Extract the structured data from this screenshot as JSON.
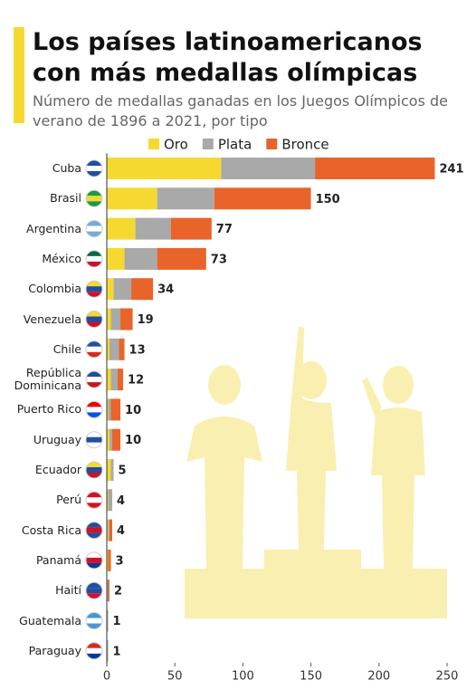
{
  "chart_data": {
    "type": "stacked-bar-horizontal",
    "title": "Los países latinoamericanos con más medallas olímpicas",
    "subtitle": "Número de medallas ganadas en los Juegos Olímpicos de verano de 1896 a 2021, por tipo",
    "categories": [
      "Cuba",
      "Brasil",
      "Argentina",
      "México",
      "Colombia",
      "Venezuela",
      "Chile",
      "República Dominicana",
      "Puerto Rico",
      "Uruguay",
      "Ecuador",
      "Perú",
      "Costa Rica",
      "Panamá",
      "Haití",
      "Guatemala",
      "Paraguay"
    ],
    "series": [
      {
        "name": "Oro",
        "color": "#f5d930",
        "values": [
          84,
          37,
          21,
          13,
          5,
          3,
          2,
          3,
          1,
          2,
          3,
          1,
          1,
          1,
          0,
          0,
          0
        ]
      },
      {
        "name": "Plata",
        "color": "#a9a9a9",
        "values": [
          69,
          42,
          26,
          24,
          13,
          7,
          7,
          5,
          2,
          2,
          2,
          3,
          1,
          0,
          1,
          1,
          1
        ]
      },
      {
        "name": "Bronce",
        "color": "#e8642a",
        "values": [
          88,
          71,
          30,
          36,
          16,
          9,
          4,
          4,
          7,
          6,
          0,
          0,
          2,
          2,
          1,
          0,
          0
        ]
      }
    ],
    "totals": [
      241,
      150,
      77,
      73,
      34,
      19,
      13,
      12,
      10,
      10,
      5,
      4,
      4,
      3,
      2,
      1,
      1
    ],
    "xlim": [
      0,
      250
    ],
    "xticks": [
      0,
      50,
      100,
      150,
      200,
      250
    ]
  }
}
